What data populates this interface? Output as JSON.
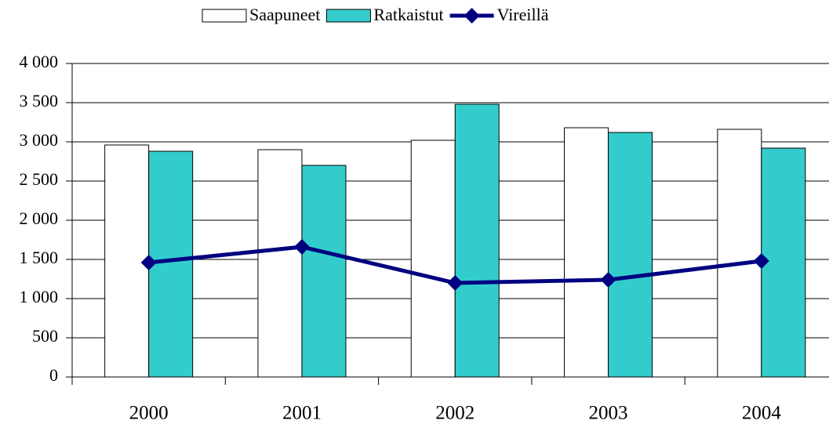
{
  "chart_data": {
    "type": "bar-line",
    "categories": [
      "2000",
      "2001",
      "2002",
      "2003",
      "2004"
    ],
    "series": [
      {
        "name": "Saapuneet",
        "type": "bar",
        "color": "#ffffff",
        "values": [
          2960,
          2900,
          3020,
          3180,
          3160
        ]
      },
      {
        "name": "Ratkaistut",
        "type": "bar",
        "color": "#33cccc",
        "values": [
          2880,
          2700,
          3480,
          3120,
          2920
        ]
      },
      {
        "name": "Vireillä",
        "type": "line",
        "color": "#000080",
        "values": [
          1460,
          1660,
          1200,
          1240,
          1480
        ]
      }
    ],
    "ylim": [
      0,
      4000
    ],
    "yticks": [
      0,
      500,
      {
        "value": 1000,
        "label": "1 000"
      },
      {
        "value": 1500,
        "label": "1 500"
      },
      {
        "value": 2000,
        "label": "2 000"
      },
      {
        "value": 2500,
        "label": "2 500"
      },
      {
        "value": 3000,
        "label": "3 000"
      },
      {
        "value": 3500,
        "label": "3 500"
      },
      {
        "value": 4000,
        "label": "4 000"
      }
    ],
    "grid": true,
    "legend": "top"
  }
}
